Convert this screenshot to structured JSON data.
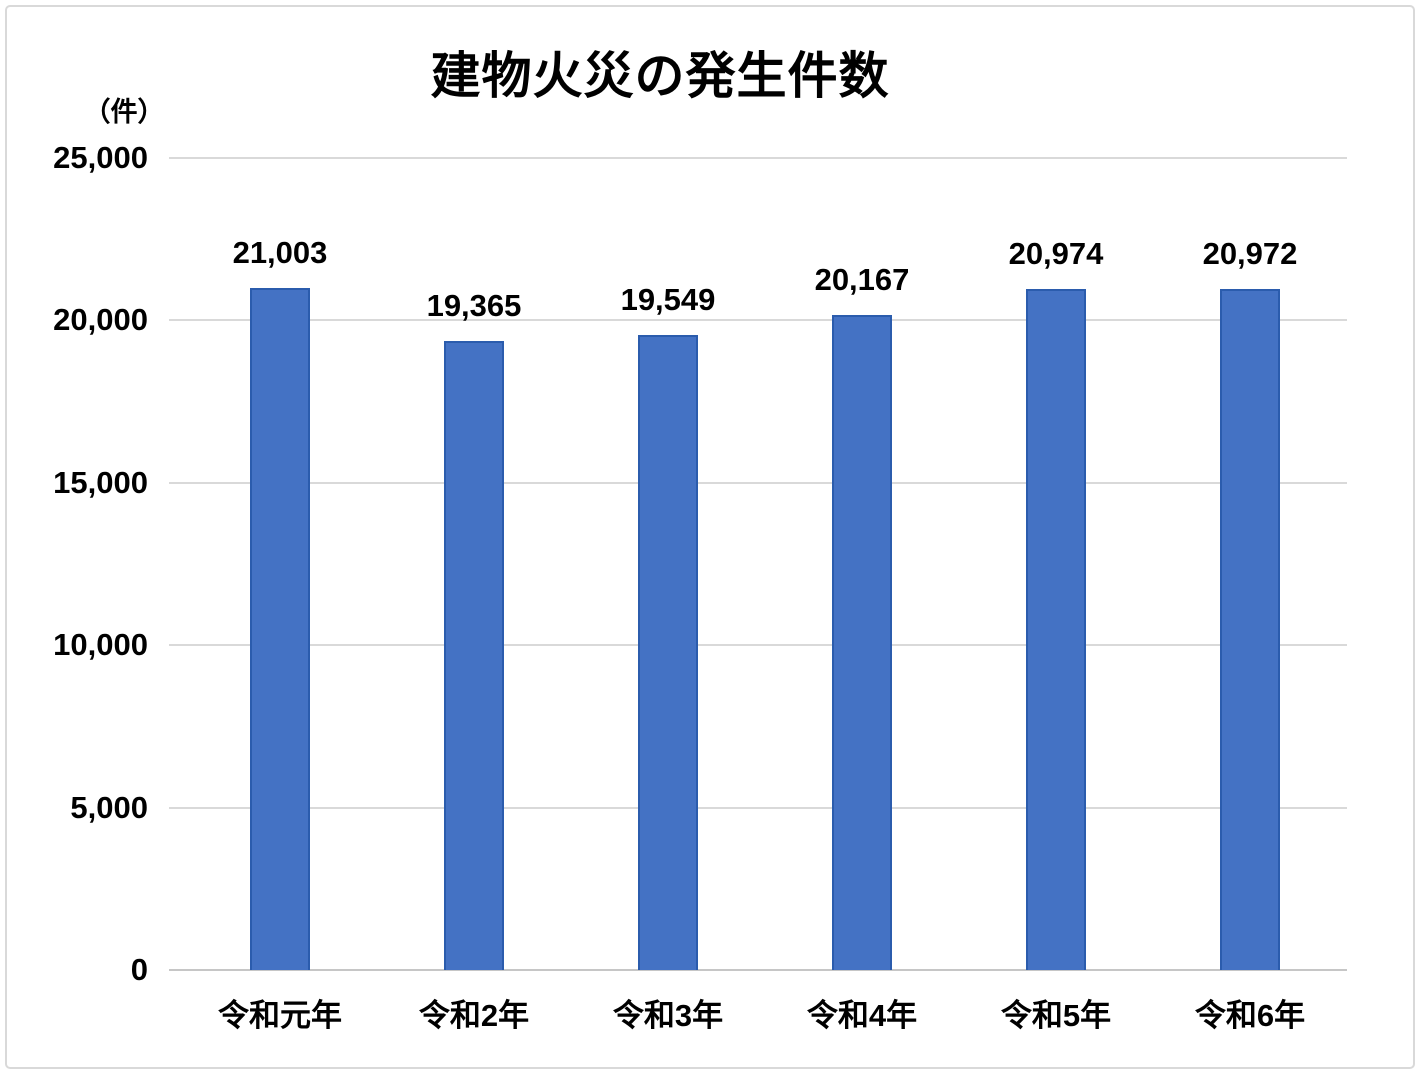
{
  "chart_data": {
    "type": "bar",
    "title": "建物火災の発生件数",
    "unit_label": "（件）",
    "categories": [
      "令和元年",
      "令和2年",
      "令和3年",
      "令和4年",
      "令和5年",
      "令和6年"
    ],
    "values": [
      21003,
      19365,
      19549,
      20167,
      20974,
      20972
    ],
    "value_labels": [
      "21,003",
      "19,365",
      "19,549",
      "20,167",
      "20,974",
      "20,972"
    ],
    "ytick_labels": [
      "25,000",
      "20,000",
      "15,000",
      "10,000",
      "5,000",
      "0"
    ],
    "ylabel": "（件）",
    "xlabel": "",
    "ylim": [
      0,
      25000
    ],
    "ytick_step": 5000,
    "grid": true,
    "legend": false,
    "colors": {
      "bar_fill": "#4472C4",
      "bar_border": "#2B5CAD",
      "gridline": "#D9D9D9",
      "axis_line": "#C6C6C6",
      "text": "#000000",
      "frame_border": "#D9D9D9",
      "background": "#FFFFFF"
    }
  }
}
